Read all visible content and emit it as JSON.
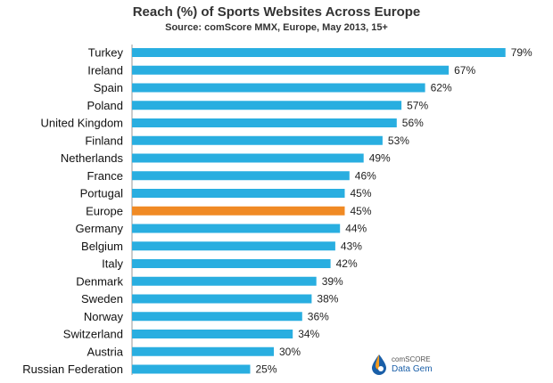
{
  "chart_data": {
    "type": "bar",
    "orientation": "horizontal",
    "title": "Reach (%) of Sports Websites Across  Europe",
    "subtitle": "Source: comScore MMX, Europe, May 2013, 15+",
    "categories": [
      "Turkey",
      "Ireland",
      "Spain",
      "Poland",
      "United Kingdom",
      "Finland",
      "Netherlands",
      "France",
      "Portugal",
      "Europe",
      "Germany",
      "Belgium",
      "Italy",
      "Denmark",
      "Sweden",
      "Norway",
      "Switzerland",
      "Austria",
      "Russian Federation"
    ],
    "values": [
      79,
      67,
      62,
      57,
      56,
      53,
      49,
      46,
      45,
      45,
      44,
      43,
      42,
      39,
      38,
      36,
      34,
      30,
      25
    ],
    "value_suffix": "%",
    "highlight_category": "Europe",
    "colors": {
      "bar": "#29aee0",
      "highlight": "#f08a24"
    },
    "xlim": [
      0,
      100
    ],
    "grid": false,
    "legend": "none"
  },
  "branding": {
    "line1": "comSCORE",
    "line2": "Data Gem",
    "icon": "comscore-droplet-icon"
  }
}
